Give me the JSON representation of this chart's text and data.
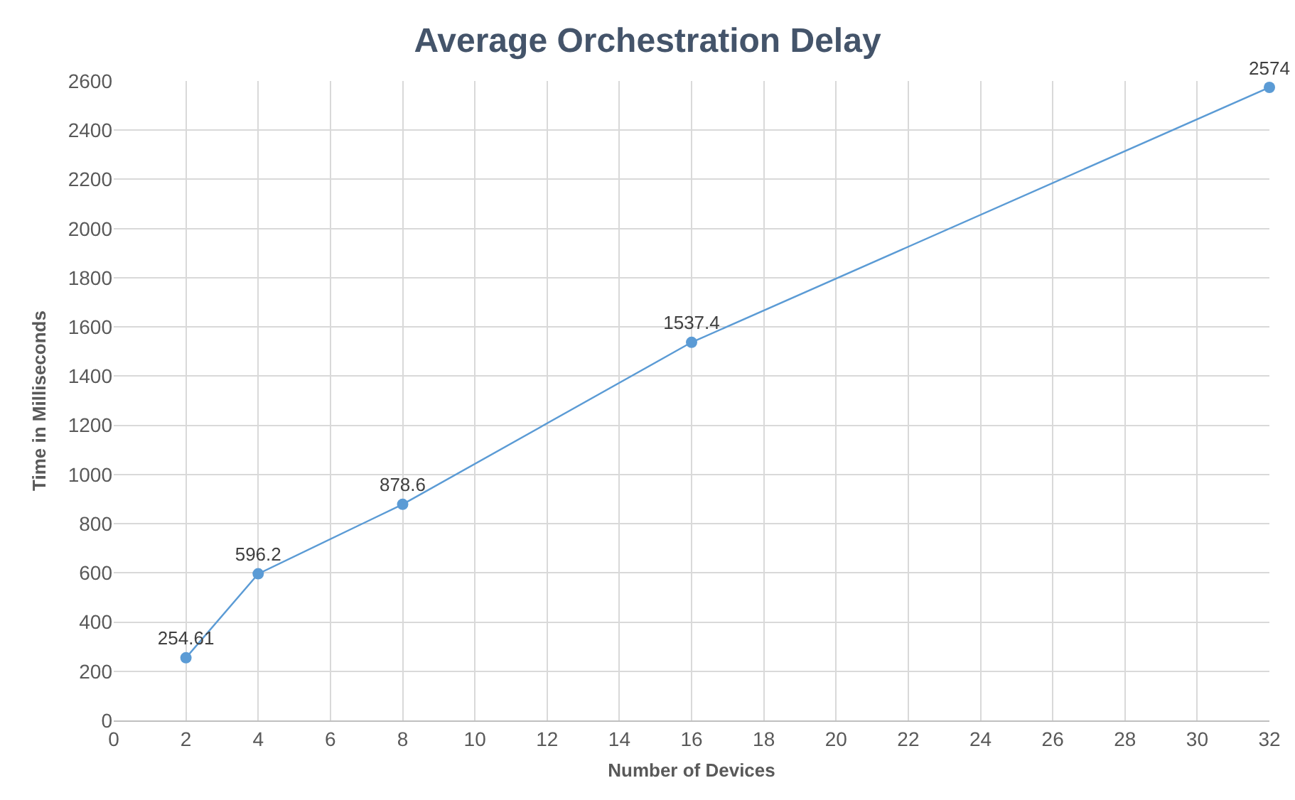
{
  "chart_data": {
    "type": "line",
    "title": "Average Orchestration Delay",
    "xlabel": "Number of Devices",
    "ylabel": "Time in Milliseconds",
    "x": [
      2,
      4,
      8,
      16,
      32
    ],
    "series": [
      {
        "color": "#5b9bd5",
        "values": [
          254.61,
          596.2,
          878.6,
          1537.4,
          2574
        ]
      }
    ],
    "xlim": [
      0,
      32
    ],
    "xticks": [
      0,
      2,
      4,
      6,
      8,
      10,
      12,
      14,
      16,
      18,
      20,
      22,
      24,
      26,
      28,
      30,
      32
    ],
    "ylim": [
      0,
      2600
    ],
    "yticks": [
      0,
      200,
      400,
      600,
      800,
      1000,
      1200,
      1400,
      1600,
      1800,
      2000,
      2200,
      2400,
      2600
    ],
    "grid": true,
    "marker": "circle",
    "line_style": "solid",
    "data_labels": true
  }
}
